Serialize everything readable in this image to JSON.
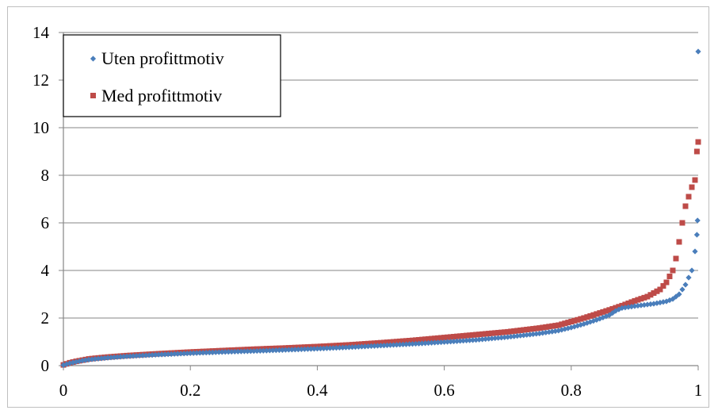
{
  "chart_data": {
    "type": "scatter",
    "xlim": [
      0,
      1
    ],
    "ylim": [
      0,
      14
    ],
    "x_ticks": [
      "0",
      "0.2",
      "0.4",
      "0.6",
      "0.8",
      "1"
    ],
    "y_ticks": [
      "0",
      "2",
      "4",
      "6",
      "8",
      "10",
      "12",
      "14"
    ],
    "grid": "horizontal",
    "legend_position": "top-left",
    "series": [
      {
        "name": "Uten profittmotiv",
        "color": "#4a7ebb",
        "marker": "diamond",
        "points": [
          [
            0.0,
            0.02
          ],
          [
            0.01,
            0.1
          ],
          [
            0.02,
            0.16
          ],
          [
            0.03,
            0.21
          ],
          [
            0.04,
            0.25
          ],
          [
            0.05,
            0.28
          ],
          [
            0.07,
            0.33
          ],
          [
            0.1,
            0.39
          ],
          [
            0.15,
            0.46
          ],
          [
            0.2,
            0.52
          ],
          [
            0.25,
            0.57
          ],
          [
            0.3,
            0.61
          ],
          [
            0.35,
            0.66
          ],
          [
            0.4,
            0.71
          ],
          [
            0.45,
            0.77
          ],
          [
            0.5,
            0.84
          ],
          [
            0.55,
            0.91
          ],
          [
            0.6,
            0.99
          ],
          [
            0.65,
            1.08
          ],
          [
            0.7,
            1.2
          ],
          [
            0.75,
            1.35
          ],
          [
            0.78,
            1.47
          ],
          [
            0.8,
            1.6
          ],
          [
            0.82,
            1.75
          ],
          [
            0.84,
            1.92
          ],
          [
            0.86,
            2.12
          ],
          [
            0.87,
            2.3
          ],
          [
            0.88,
            2.42
          ],
          [
            0.9,
            2.5
          ],
          [
            0.93,
            2.6
          ],
          [
            0.95,
            2.7
          ],
          [
            0.96,
            2.8
          ],
          [
            0.97,
            3.0
          ],
          [
            0.98,
            3.4
          ],
          [
            0.99,
            4.0
          ],
          [
            0.995,
            4.8
          ],
          [
            0.998,
            5.5
          ],
          [
            0.999,
            6.1
          ],
          [
            1.0,
            13.2
          ]
        ]
      },
      {
        "name": "Med profittmotiv",
        "color": "#be4b48",
        "marker": "square",
        "points": [
          [
            0.0,
            0.03
          ],
          [
            0.01,
            0.12
          ],
          [
            0.02,
            0.18
          ],
          [
            0.03,
            0.23
          ],
          [
            0.04,
            0.28
          ],
          [
            0.05,
            0.31
          ],
          [
            0.07,
            0.36
          ],
          [
            0.1,
            0.42
          ],
          [
            0.15,
            0.5
          ],
          [
            0.2,
            0.57
          ],
          [
            0.25,
            0.63
          ],
          [
            0.3,
            0.69
          ],
          [
            0.35,
            0.74
          ],
          [
            0.4,
            0.8
          ],
          [
            0.45,
            0.87
          ],
          [
            0.5,
            0.96
          ],
          [
            0.55,
            1.06
          ],
          [
            0.6,
            1.18
          ],
          [
            0.65,
            1.3
          ],
          [
            0.7,
            1.42
          ],
          [
            0.75,
            1.58
          ],
          [
            0.78,
            1.7
          ],
          [
            0.8,
            1.85
          ],
          [
            0.82,
            2.0
          ],
          [
            0.84,
            2.17
          ],
          [
            0.86,
            2.34
          ],
          [
            0.88,
            2.52
          ],
          [
            0.9,
            2.72
          ],
          [
            0.92,
            2.9
          ],
          [
            0.94,
            3.2
          ],
          [
            0.95,
            3.5
          ],
          [
            0.96,
            4.0
          ],
          [
            0.965,
            4.5
          ],
          [
            0.97,
            5.2
          ],
          [
            0.975,
            6.0
          ],
          [
            0.98,
            6.7
          ],
          [
            0.99,
            7.5
          ],
          [
            0.995,
            7.8
          ],
          [
            0.998,
            9.0
          ],
          [
            1.0,
            9.4
          ]
        ]
      }
    ]
  }
}
